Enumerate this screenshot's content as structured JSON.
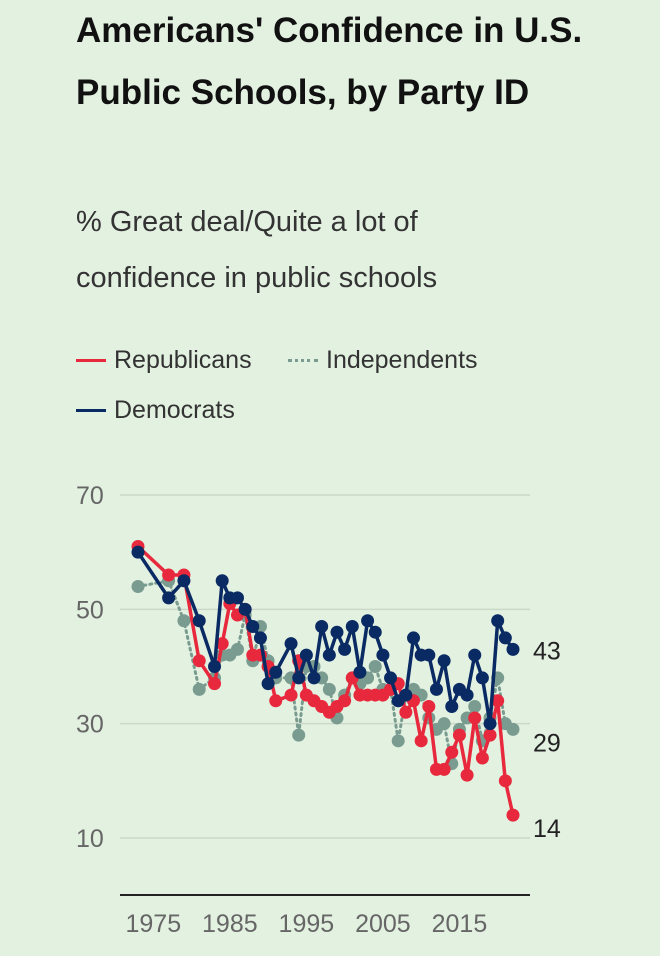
{
  "title": "Americans' Confidence in U.S. Public Schools, by Party ID",
  "subtitle": "% Great deal/Quite a lot of confidence in public schools",
  "chart_data": {
    "type": "line",
    "title": "Americans' Confidence in U.S. Public Schools, by Party ID",
    "subtitle": "% Great deal/Quite a lot of confidence in public schools",
    "xlabel": "",
    "ylabel": "",
    "ylim": [
      0,
      70
    ],
    "yticks": [
      10,
      30,
      50,
      70
    ],
    "xticks": [
      1975,
      1985,
      1995,
      2005,
      2015
    ],
    "grid": true,
    "legend": "top-left",
    "series": [
      {
        "name": "Independents",
        "color": "#7a9c90",
        "style": "dotted",
        "x": [
          1973,
          1977,
          1979,
          1981,
          1983,
          1984,
          1985,
          1986,
          1987,
          1988,
          1989,
          1990,
          1991,
          1993,
          1994,
          1995,
          1996,
          1997,
          1998,
          1999,
          2000,
          2001,
          2002,
          2003,
          2004,
          2005,
          2006,
          2007,
          2008,
          2009,
          2010,
          2011,
          2012,
          2013,
          2014,
          2015,
          2016,
          2017,
          2018,
          2019,
          2020,
          2021,
          2022
        ],
        "values": [
          54,
          55,
          48,
          36,
          38,
          42,
          42,
          43,
          49,
          41,
          47,
          41,
          38,
          38,
          28,
          40,
          40,
          38,
          36,
          31,
          35,
          38,
          37,
          38,
          40,
          36,
          36,
          27,
          35,
          36,
          35,
          31,
          29,
          30,
          23,
          29,
          31,
          33,
          27,
          31,
          38,
          30,
          29
        ]
      },
      {
        "name": "Republicans",
        "color": "#e8283c",
        "style": "solid",
        "x": [
          1973,
          1977,
          1979,
          1981,
          1983,
          1984,
          1985,
          1986,
          1987,
          1988,
          1989,
          1990,
          1991,
          1993,
          1994,
          1995,
          1996,
          1997,
          1998,
          1999,
          2000,
          2001,
          2002,
          2003,
          2004,
          2005,
          2006,
          2007,
          2008,
          2009,
          2010,
          2011,
          2012,
          2013,
          2014,
          2015,
          2016,
          2017,
          2018,
          2019,
          2020,
          2021,
          2022
        ],
        "values": [
          61,
          56,
          56,
          41,
          37,
          44,
          51,
          49,
          50,
          42,
          42,
          40,
          34,
          35,
          41,
          35,
          34,
          33,
          32,
          33,
          34,
          38,
          35,
          35,
          35,
          35,
          36,
          37,
          32,
          34,
          27,
          33,
          22,
          22,
          25,
          28,
          21,
          31,
          24,
          28,
          34,
          20,
          14
        ]
      },
      {
        "name": "Democrats",
        "color": "#0a2a63",
        "style": "solid",
        "x": [
          1973,
          1977,
          1979,
          1981,
          1983,
          1984,
          1985,
          1986,
          1987,
          1988,
          1989,
          1990,
          1991,
          1993,
          1994,
          1995,
          1996,
          1997,
          1998,
          1999,
          2000,
          2001,
          2002,
          2003,
          2004,
          2005,
          2006,
          2007,
          2008,
          2009,
          2010,
          2011,
          2012,
          2013,
          2014,
          2015,
          2016,
          2017,
          2018,
          2019,
          2020,
          2021,
          2022
        ],
        "values": [
          60,
          52,
          55,
          48,
          40,
          55,
          52,
          52,
          50,
          47,
          45,
          37,
          39,
          44,
          38,
          42,
          38,
          47,
          42,
          46,
          43,
          47,
          39,
          48,
          46,
          42,
          38,
          34,
          35,
          45,
          42,
          42,
          36,
          41,
          33,
          36,
          35,
          42,
          38,
          30,
          48,
          45,
          43
        ]
      }
    ],
    "end_labels": [
      {
        "series": "Democrats",
        "label": "43"
      },
      {
        "series": "Independents",
        "label": "29"
      },
      {
        "series": "Republicans",
        "label": "14"
      }
    ]
  },
  "legend": {
    "republicans": "Republicans",
    "independents": "Independents",
    "democrats": "Democrats"
  }
}
